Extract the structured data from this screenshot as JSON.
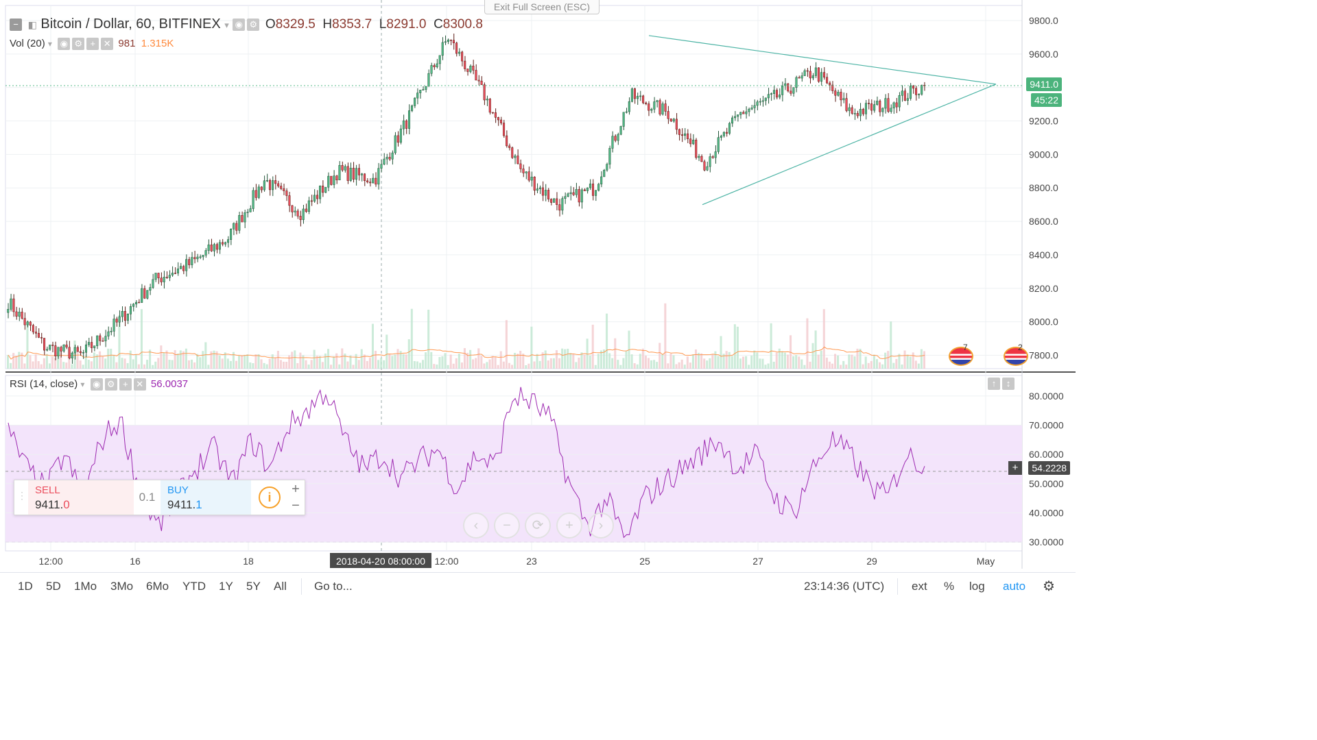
{
  "header": {
    "symbol": "Bitcoin / Dollar, 60, BITFINEX",
    "open_label": "O",
    "open": "8329.5",
    "high_label": "H",
    "high": "8353.7",
    "low_label": "L",
    "low": "8291.0",
    "close_label": "C",
    "close": "8300.8",
    "vol_label": "Vol (20)",
    "vol_value": "981",
    "vol_ma": "1.315K",
    "rsi_label": "RSI (14, close)",
    "rsi_value": "56.0037"
  },
  "exit_fullscreen": "Exit Full Screen (ESC)",
  "price_axis": {
    "ticks": [
      "9800.0",
      "9600.0",
      "9400.0",
      "9200.0",
      "9000.0",
      "8800.0",
      "8600.0",
      "8400.0",
      "8200.0",
      "8000.0",
      "7800.0"
    ],
    "last_price": "9411.0",
    "countdown": "45:22"
  },
  "rsi_axis": {
    "ticks": [
      "80.0000",
      "70.0000",
      "60.0000",
      "50.0000",
      "40.0000",
      "30.0000"
    ],
    "crosshair_value": "54.2228"
  },
  "time_axis": {
    "ticks": [
      "12:00",
      "16",
      "18",
      "12:00",
      "23",
      "25",
      "27",
      "29",
      "May"
    ],
    "crosshair_label": "2018-04-20 08:00:00"
  },
  "events": {
    "badge_count": "7",
    "badge_count_2": "2"
  },
  "trade": {
    "sell_label": "SELL",
    "sell_price_main": "9411.",
    "sell_price_last": "0",
    "buy_label": "BUY",
    "buy_price_main": "9411.",
    "buy_price_last": "1",
    "quantity": "0.1",
    "info": "i",
    "plus": "+",
    "minus": "−"
  },
  "navigation": {
    "back": "‹",
    "zoom_out": "−",
    "reset": "⟳",
    "zoom_in": "+",
    "forward": "›"
  },
  "toolbar": {
    "ranges": [
      "1D",
      "5D",
      "1Mo",
      "3Mo",
      "6Mo",
      "YTD",
      "1Y",
      "5Y",
      "All"
    ],
    "goto": "Go to...",
    "clock": "23:14:36 (UTC)",
    "ext": "ext",
    "percent": "%",
    "log": "log",
    "auto": "auto"
  },
  "colors": {
    "up": "#53b987",
    "down": "#eb4d5c",
    "candle_border_up": "#225437",
    "candle_border_down": "#5b1a13",
    "trend": "#4bb3a4",
    "rsi_line": "#9c27b0",
    "rsi_band": "#f3e4fb",
    "vol_ma": "#ff9850",
    "last_price_bg": "#4bb37c",
    "accent": "#2196f3"
  },
  "chart_data": [
    {
      "type": "candlestick",
      "title": "Bitcoin / Dollar, 60, BITFINEX",
      "ylabel": "",
      "xlabel": "",
      "ylim": [
        7720,
        9890
      ],
      "x_ticks": [
        "12:00",
        "16",
        "18",
        "12:00",
        "23",
        "25",
        "27",
        "29",
        "May"
      ],
      "anchors": {
        "x": [
          "Apr 15 12:00",
          "Apr 16",
          "Apr 18",
          "Apr 20 08:00",
          "Apr 20 12:00",
          "Apr 23",
          "Apr 25",
          "Apr 27",
          "Apr 29",
          "May 1"
        ],
        "price": [
          8120,
          7850,
          7800,
          8000,
          8250,
          8350,
          8500,
          8850,
          8650,
          8900,
          8850,
          9250,
          9700,
          9350,
          8900,
          8700,
          8800,
          9350,
          9250,
          8950,
          9250,
          9350,
          9500,
          9250,
          9300,
          9411
        ]
      },
      "last_price": 9411.0,
      "trendlines": [
        {
          "from": [
            "Apr 25",
            9710
          ],
          "to": [
            "May 1",
            9420
          ]
        },
        {
          "from": [
            "Apr 26",
            8700
          ],
          "to": [
            "May 1",
            9420
          ]
        }
      ]
    },
    {
      "type": "line",
      "title": "RSI (14, close)",
      "ylim": [
        27,
        87
      ],
      "bands": [
        30,
        70
      ],
      "last_value": 56.0037,
      "values_outline": [
        68,
        55,
        48,
        60,
        45,
        65,
        72,
        48,
        35,
        45,
        55,
        62,
        50,
        65,
        55,
        70,
        75,
        82,
        65,
        55,
        60,
        52,
        58,
        62,
        48,
        60,
        56,
        80,
        78,
        72,
        50,
        35,
        45,
        30,
        45,
        50,
        55,
        60,
        65,
        55,
        60,
        45,
        40,
        55,
        65,
        60,
        50,
        45,
        60,
        56
      ]
    }
  ]
}
